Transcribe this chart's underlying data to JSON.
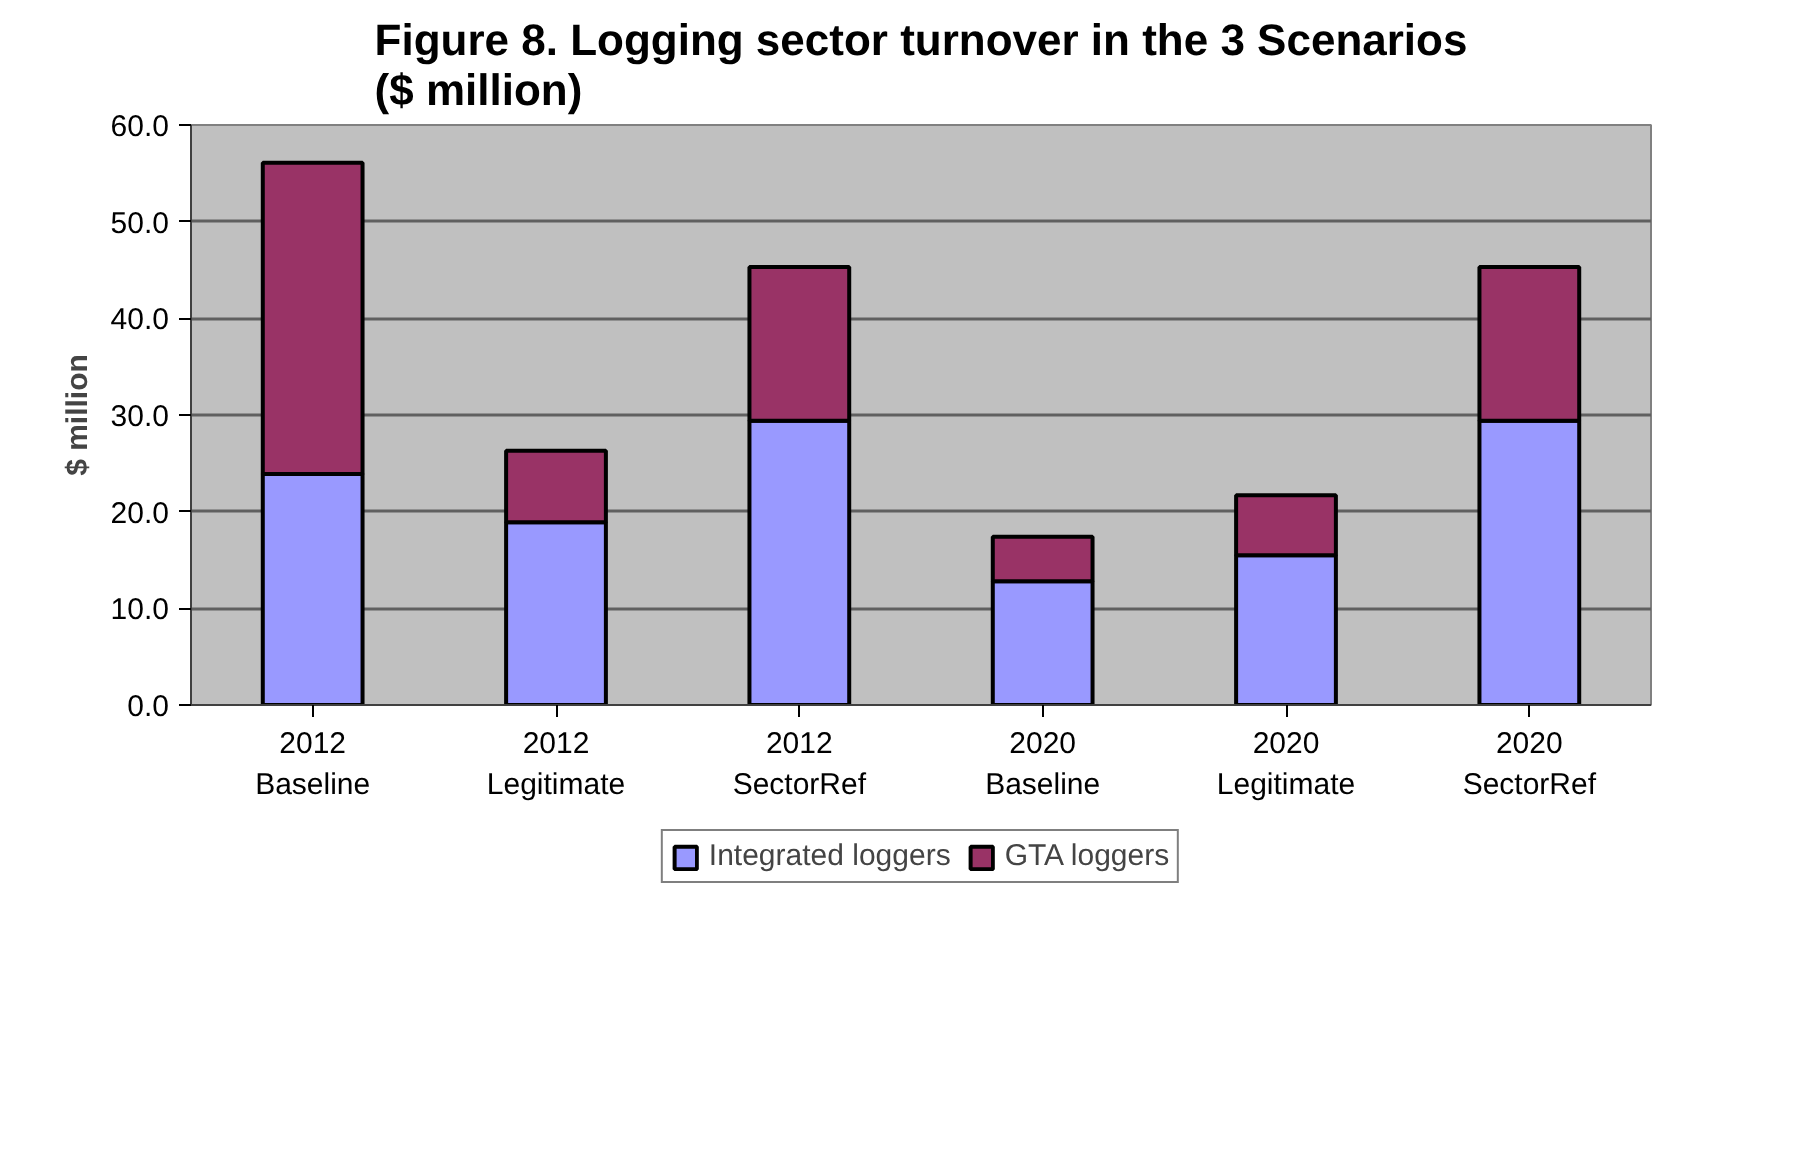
{
  "chart_data": {
    "type": "bar",
    "title": "Figure 8. Logging sector turnover in the 3 Scenarios\n($ million)",
    "ylabel": "$ million",
    "categories": [
      "2012\nBaseline",
      "2012\nLegitimate",
      "2012\nSectorRef",
      "2020\nBaseline",
      "2020\nLegitimate",
      "2020\nSectorRef"
    ],
    "stacked": true,
    "series": [
      {
        "name": "Integrated loggers",
        "color": "#9999ff",
        "values": [
          23.9,
          18.9,
          29.4,
          12.8,
          15.5,
          29.4
        ]
      },
      {
        "name": "GTA loggers",
        "color": "#993366",
        "values": [
          32.2,
          7.4,
          15.9,
          4.6,
          6.2,
          15.9
        ]
      }
    ],
    "ylim": [
      0,
      60
    ],
    "yticks": [
      {
        "value": 0,
        "label": "0.0"
      },
      {
        "value": 10,
        "label": "10.0"
      },
      {
        "value": 20,
        "label": "20.0"
      },
      {
        "value": 30,
        "label": "30.0"
      },
      {
        "value": 40,
        "label": "40.0"
      },
      {
        "value": 50,
        "label": "50.0"
      },
      {
        "value": 60,
        "label": "60.0"
      }
    ],
    "grid": "y",
    "legend": "bottom"
  }
}
